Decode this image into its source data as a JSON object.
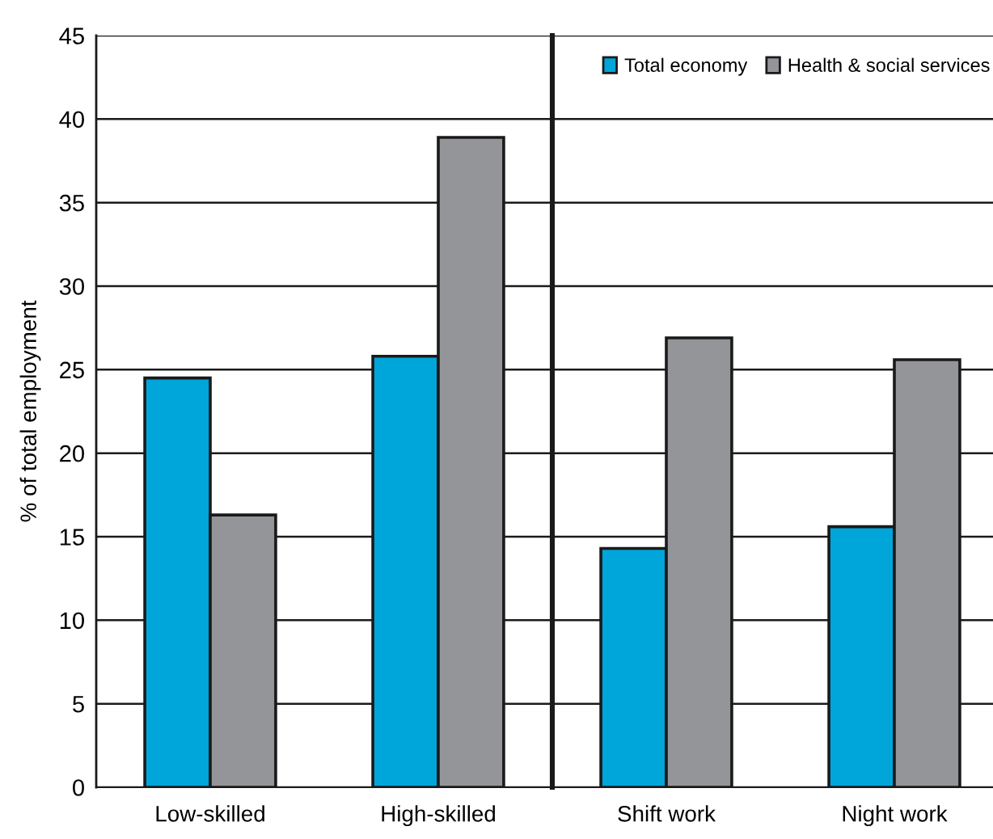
{
  "chart_data": [
    {
      "type": "bar",
      "ylabel": "% of total employment",
      "categories": [
        "Low-skilled",
        "High-skilled"
      ],
      "series": [
        {
          "color": "#00a5d9",
          "values": [
            24.5,
            25.8
          ]
        },
        {
          "color": "#939598",
          "values": [
            16.3,
            38.9
          ]
        }
      ],
      "ylim": [
        0,
        45
      ],
      "yticks": [
        0,
        5,
        10,
        15,
        20,
        25,
        30,
        35,
        40,
        45
      ],
      "grid": "y"
    },
    {
      "type": "bar",
      "categories": [
        "Shift work",
        "Night work"
      ],
      "series": [
        {
          "name": "Total economy",
          "color": "#00a5d9",
          "values": [
            14.3,
            15.6
          ]
        },
        {
          "name": "Health & social services",
          "color": "#939598",
          "values": [
            26.9,
            25.6
          ]
        }
      ],
      "ylim": [
        0,
        45
      ],
      "yticks": [
        0,
        5,
        10,
        15,
        20,
        25,
        30,
        35,
        40,
        45
      ],
      "grid": "y",
      "tick_labels": "x",
      "legend": "top right"
    }
  ]
}
